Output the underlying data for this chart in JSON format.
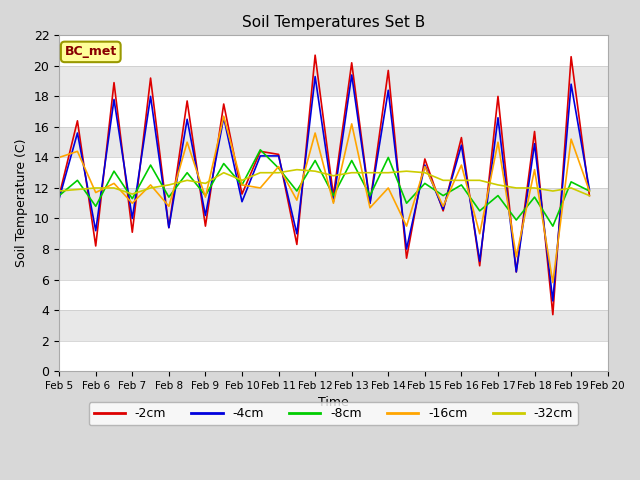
{
  "title": "Soil Temperatures Set B",
  "xlabel": "Time",
  "ylabel": "Soil Temperature (C)",
  "annotation": "BC_met",
  "ylim": [
    0,
    22
  ],
  "background_color": "#d8d8d8",
  "plot_background": "#ffffff",
  "stripe_color": "#e8e8e8",
  "legend_labels": [
    "-2cm",
    "-4cm",
    "-8cm",
    "-16cm",
    "-32cm"
  ],
  "line_colors": [
    "#dd0000",
    "#0000dd",
    "#00cc00",
    "#ffa500",
    "#cccc00"
  ],
  "line_widths": [
    1.2,
    1.2,
    1.2,
    1.2,
    1.2
  ],
  "xtick_labels": [
    "Feb 5",
    "Feb 6",
    "Feb 7",
    "Feb 8",
    "Feb 9",
    "Feb 10",
    "Feb 11",
    "Feb 12",
    "Feb 13",
    "Feb 14",
    "Feb 15",
    "Feb 16",
    "Feb 17",
    "Feb 18",
    "Feb 19",
    "Feb 20"
  ],
  "series": {
    "depth_2cm": [
      11.5,
      16.4,
      8.2,
      18.9,
      9.1,
      19.2,
      9.4,
      17.7,
      9.5,
      17.5,
      11.6,
      14.4,
      14.2,
      8.3,
      20.7,
      11.5,
      20.2,
      11.0,
      19.7,
      7.4,
      13.9,
      10.5,
      15.3,
      6.9,
      18.0,
      6.5,
      15.7,
      3.7,
      20.6,
      11.5
    ],
    "depth_4cm": [
      11.3,
      15.6,
      9.2,
      17.8,
      10.0,
      18.0,
      9.4,
      16.5,
      10.2,
      16.6,
      11.1,
      14.1,
      14.1,
      9.0,
      19.3,
      11.1,
      19.4,
      11.0,
      18.4,
      8.0,
      13.5,
      10.6,
      14.8,
      7.2,
      16.6,
      6.5,
      14.9,
      4.6,
      18.8,
      11.9
    ],
    "depth_8cm": [
      11.5,
      12.5,
      10.8,
      13.1,
      11.3,
      13.5,
      11.4,
      13.0,
      11.5,
      13.6,
      12.2,
      14.5,
      13.3,
      11.8,
      13.8,
      11.5,
      13.8,
      11.5,
      14.0,
      11.0,
      12.3,
      11.5,
      12.2,
      10.5,
      11.5,
      9.9,
      11.4,
      9.5,
      12.4,
      11.8
    ],
    "depth_16cm": [
      14.0,
      14.4,
      11.7,
      12.3,
      11.0,
      12.2,
      10.8,
      15.0,
      11.4,
      16.7,
      12.2,
      12.0,
      13.4,
      11.2,
      15.6,
      11.0,
      16.2,
      10.7,
      12.0,
      9.5,
      13.4,
      10.8,
      13.5,
      9.0,
      15.0,
      7.5,
      13.2,
      5.8,
      15.2,
      11.8
    ],
    "depth_32cm": [
      11.8,
      11.9,
      12.0,
      12.0,
      11.6,
      12.0,
      12.2,
      12.5,
      12.3,
      13.0,
      12.5,
      13.0,
      13.0,
      13.2,
      13.1,
      12.8,
      13.0,
      13.0,
      13.0,
      13.1,
      13.0,
      12.5,
      12.5,
      12.5,
      12.2,
      12.0,
      12.0,
      11.8,
      12.0,
      11.5
    ]
  }
}
